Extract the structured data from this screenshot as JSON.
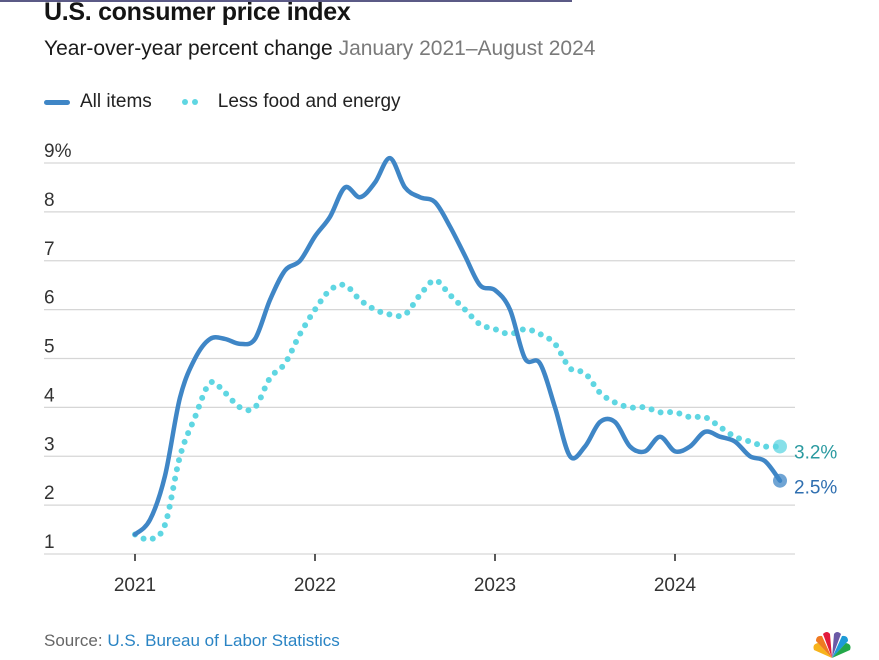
{
  "title": "U.S. consumer price index",
  "subtitle": "Year-over-year percent change",
  "date_range": "January 2021–August 2024",
  "legend": {
    "all_items": "All items",
    "core": "Less food and energy"
  },
  "source_label": "Source:",
  "source_link": "U.S. Bureau of Labor Statistics",
  "logo": "nbc-peacock-icon",
  "colors": {
    "all_items": "#3f86c6",
    "core": "#5fd6e2",
    "all_items_label": "#2f6fb0",
    "core_label": "#2a9aa0",
    "grid": "#d6d6d6"
  },
  "chart_data": {
    "type": "line",
    "title": "U.S. consumer price index",
    "subtitle": "Year-over-year percent change January 2021–August 2024",
    "xlabel": "",
    "ylabel": "",
    "x_start": "2021-01",
    "x_end": "2024-08",
    "x_ticks": [
      "2021",
      "2022",
      "2023",
      "2024"
    ],
    "y_ticks": [
      "9%",
      "8",
      "7",
      "6",
      "5",
      "4",
      "3",
      "2",
      "1"
    ],
    "ylim": [
      1,
      9
    ],
    "grid": true,
    "legend_position": "top-left",
    "series": [
      {
        "name": "All items",
        "style": "solid",
        "values": [
          1.4,
          1.7,
          2.6,
          4.2,
          5.0,
          5.4,
          5.4,
          5.3,
          5.4,
          6.2,
          6.8,
          7.0,
          7.5,
          7.9,
          8.5,
          8.3,
          8.6,
          9.1,
          8.5,
          8.3,
          8.2,
          7.7,
          7.1,
          6.5,
          6.4,
          6.0,
          5.0,
          4.9,
          4.0,
          3.0,
          3.2,
          3.7,
          3.7,
          3.2,
          3.1,
          3.4,
          3.1,
          3.2,
          3.5,
          3.4,
          3.3,
          3.0,
          2.9,
          2.5
        ],
        "end_label": "2.5%"
      },
      {
        "name": "Less food and energy",
        "style": "dotted",
        "values": [
          1.4,
          1.3,
          1.6,
          3.0,
          3.8,
          4.5,
          4.3,
          4.0,
          4.0,
          4.6,
          4.9,
          5.5,
          6.0,
          6.4,
          6.5,
          6.2,
          6.0,
          5.9,
          5.9,
          6.3,
          6.6,
          6.3,
          6.0,
          5.7,
          5.6,
          5.5,
          5.6,
          5.5,
          5.3,
          4.8,
          4.7,
          4.3,
          4.1,
          4.0,
          4.0,
          3.9,
          3.9,
          3.8,
          3.8,
          3.6,
          3.4,
          3.3,
          3.2,
          3.2
        ],
        "end_label": "3.2%"
      }
    ]
  }
}
